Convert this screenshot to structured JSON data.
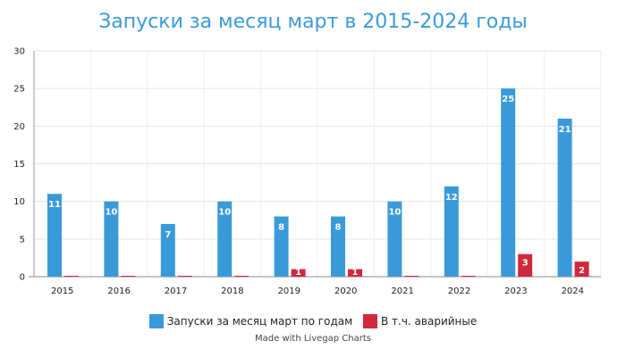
{
  "chart_data": {
    "type": "bar",
    "title": "Запуски за месяц март в 2015-2024 годы",
    "categories": [
      "2015",
      "2016",
      "2017",
      "2018",
      "2019",
      "2020",
      "2021",
      "2022",
      "2023",
      "2024"
    ],
    "series": [
      {
        "name": "Запуски за месяц март по годам",
        "values": [
          11,
          10,
          7,
          10,
          8,
          8,
          10,
          12,
          25,
          21
        ],
        "color": "#3a9ad9"
      },
      {
        "name": "В т.ч. аварийные",
        "values": [
          0,
          0,
          0,
          0,
          1,
          1,
          0,
          0,
          3,
          2
        ],
        "color": "#d0283c"
      }
    ],
    "ylim": [
      0,
      30
    ],
    "yticks": [
      0,
      5,
      10,
      15,
      20,
      25,
      30
    ],
    "grid": true,
    "legend_position": "bottom",
    "xlabel": "",
    "ylabel": ""
  },
  "credit": "Made with Livegap Charts"
}
